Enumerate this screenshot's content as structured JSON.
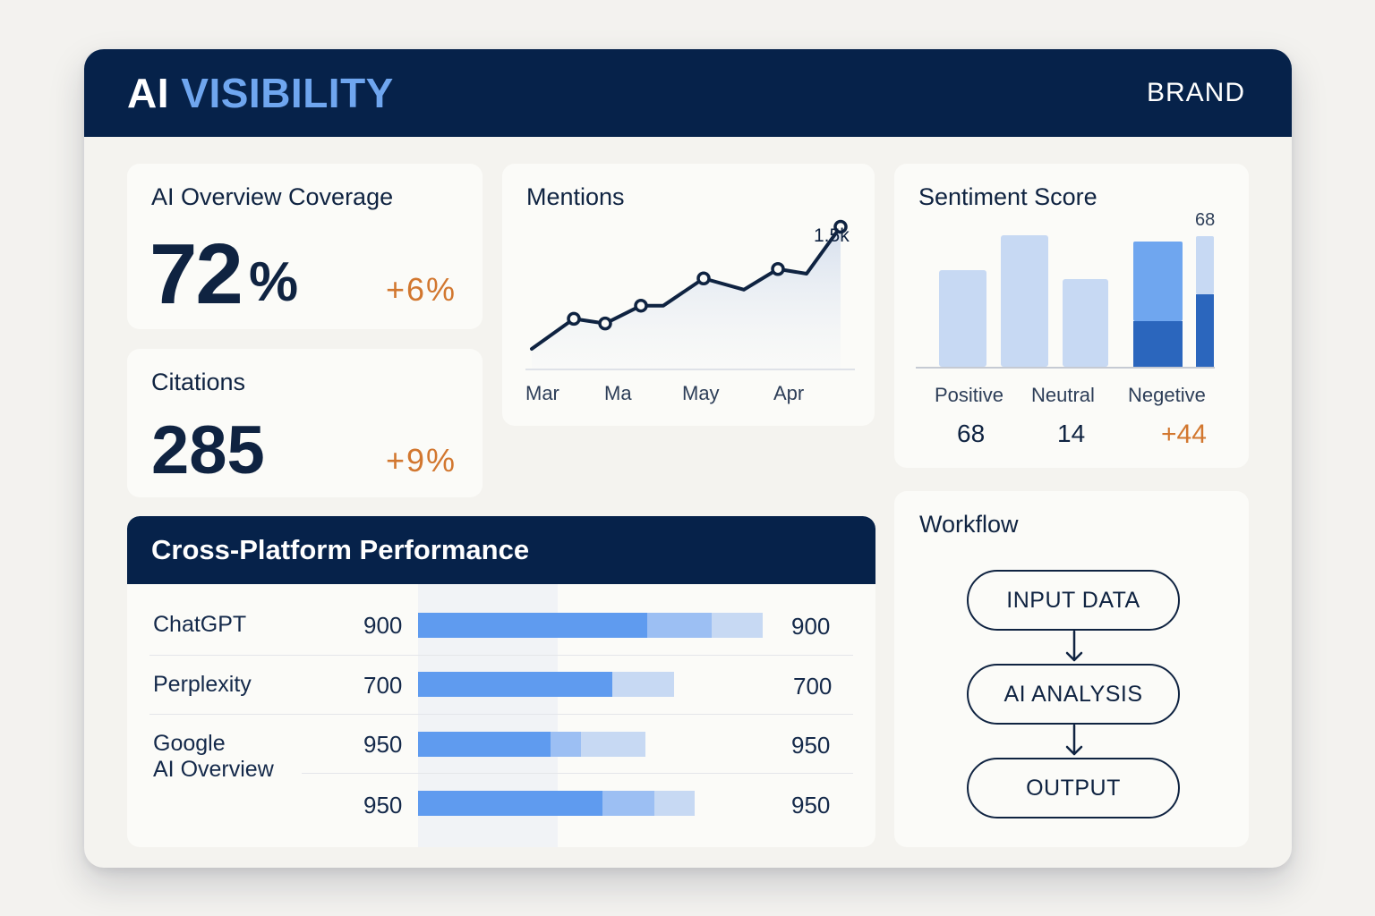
{
  "header": {
    "logo_prefix": "AI",
    "logo_highlight": "VISIBILITY",
    "brand_label": "BRAND",
    "colors": {
      "navy": "#06224a",
      "accent": "#6fa6ef",
      "delta": "#d2772f"
    }
  },
  "coverage": {
    "title": "AI Overview Coverage",
    "value": "72",
    "unit": "%",
    "delta": "+6%"
  },
  "citations": {
    "title": "Citations",
    "value": "285",
    "delta": "+9%"
  },
  "mentions": {
    "title": "Mentions",
    "peak_label": "1.5k",
    "x_labels": [
      "Mar",
      "Ma",
      "May",
      "Apr"
    ]
  },
  "sentiment": {
    "title": "Sentiment Score",
    "top_label": "68",
    "labels": [
      "Positive",
      "Neutral",
      "Negetive"
    ],
    "values": [
      "68",
      "14",
      "+44"
    ]
  },
  "cross_platform": {
    "title": "Cross-Platform Performance",
    "rows": [
      {
        "name": "ChatGPT",
        "left": "900",
        "right": "900",
        "fill": 0.55
      },
      {
        "name": "Perplexity",
        "left": "700",
        "right": "700",
        "fill": 0.5
      },
      {
        "name": "Google",
        "name2": "AI Overview",
        "left": "950",
        "right": "950",
        "fill": 0.45
      },
      {
        "name": "",
        "left": "950",
        "right": "950",
        "fill": 0.5
      }
    ]
  },
  "workflow": {
    "title": "Workflow",
    "steps": [
      "INPUT DATA",
      "AI ANALYSIS",
      "OUTPUT"
    ]
  },
  "chart_data": [
    {
      "type": "line",
      "title": "Mentions",
      "x_tick_labels": [
        "Mar",
        "Ma",
        "May",
        "Apr"
      ],
      "values": [
        0.2,
        0.52,
        0.47,
        0.66,
        0.66,
        0.95,
        0.83,
        1.05,
        1.0,
        1.5
      ],
      "annotations": [
        "1.5k"
      ],
      "grid": false
    },
    {
      "type": "bar",
      "title": "Sentiment Score",
      "categories": [
        "Positive",
        "Neutral",
        "Negetive"
      ],
      "values": [
        68,
        14,
        44
      ],
      "annotations": [
        "68"
      ]
    }
  ]
}
